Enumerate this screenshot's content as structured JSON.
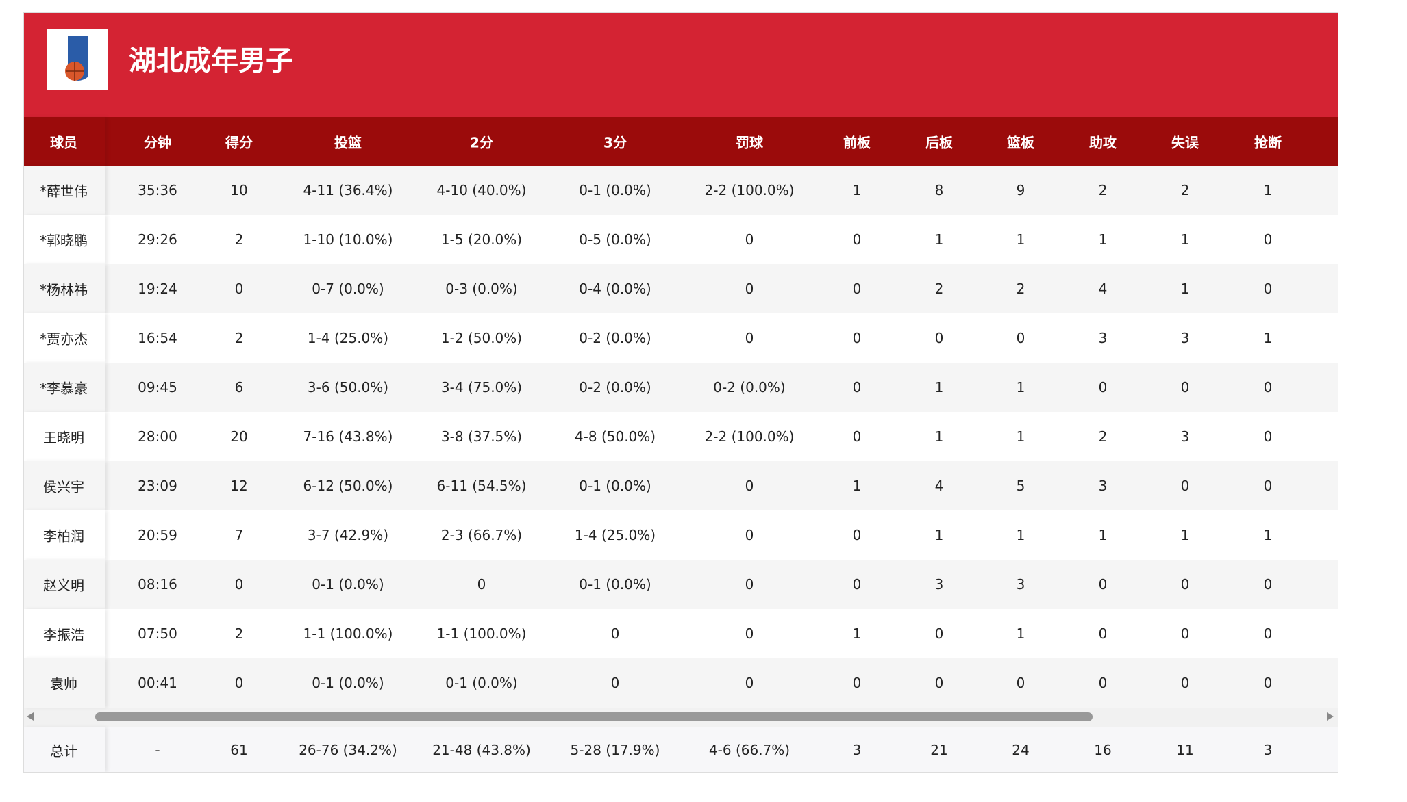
{
  "header": {
    "title": "湖北成年男子"
  },
  "table": {
    "columns": [
      "球员",
      "分钟",
      "得分",
      "投篮",
      "2分",
      "3分",
      "罚球",
      "前板",
      "后板",
      "篮板",
      "助攻",
      "失误",
      "抢断"
    ],
    "rows": [
      [
        "*薛世伟",
        "35:36",
        "10",
        "4-11 (36.4%)",
        "4-10 (40.0%)",
        "0-1 (0.0%)",
        "2-2 (100.0%)",
        "1",
        "8",
        "9",
        "2",
        "2",
        "1"
      ],
      [
        "*郭晓鹏",
        "29:26",
        "2",
        "1-10 (10.0%)",
        "1-5 (20.0%)",
        "0-5 (0.0%)",
        "0",
        "0",
        "1",
        "1",
        "1",
        "1",
        "0"
      ],
      [
        "*杨林祎",
        "19:24",
        "0",
        "0-7 (0.0%)",
        "0-3 (0.0%)",
        "0-4 (0.0%)",
        "0",
        "0",
        "2",
        "2",
        "4",
        "1",
        "0"
      ],
      [
        "*贾亦杰",
        "16:54",
        "2",
        "1-4 (25.0%)",
        "1-2 (50.0%)",
        "0-2 (0.0%)",
        "0",
        "0",
        "0",
        "0",
        "3",
        "3",
        "1"
      ],
      [
        "*李慕豪",
        "09:45",
        "6",
        "3-6 (50.0%)",
        "3-4 (75.0%)",
        "0-2 (0.0%)",
        "0-2 (0.0%)",
        "0",
        "1",
        "1",
        "0",
        "0",
        "0"
      ],
      [
        "王晓明",
        "28:00",
        "20",
        "7-16 (43.8%)",
        "3-8 (37.5%)",
        "4-8 (50.0%)",
        "2-2 (100.0%)",
        "0",
        "1",
        "1",
        "2",
        "3",
        "0"
      ],
      [
        "侯兴宇",
        "23:09",
        "12",
        "6-12 (50.0%)",
        "6-11 (54.5%)",
        "0-1 (0.0%)",
        "0",
        "1",
        "4",
        "5",
        "3",
        "0",
        "0"
      ],
      [
        "李柏润",
        "20:59",
        "7",
        "3-7 (42.9%)",
        "2-3 (66.7%)",
        "1-4 (25.0%)",
        "0",
        "0",
        "1",
        "1",
        "1",
        "1",
        "1"
      ],
      [
        "赵义明",
        "08:16",
        "0",
        "0-1 (0.0%)",
        "0",
        "0-1 (0.0%)",
        "0",
        "0",
        "3",
        "3",
        "0",
        "0",
        "0"
      ],
      [
        "李振浩",
        "07:50",
        "2",
        "1-1 (100.0%)",
        "1-1 (100.0%)",
        "0",
        "0",
        "1",
        "0",
        "1",
        "0",
        "0",
        "0"
      ],
      [
        "袁帅",
        "00:41",
        "0",
        "0-1 (0.0%)",
        "0-1 (0.0%)",
        "0",
        "0",
        "0",
        "0",
        "0",
        "0",
        "0",
        "0"
      ]
    ],
    "total": [
      "总计",
      "-",
      "61",
      "26-76 (34.2%)",
      "21-48 (43.8%)",
      "5-28 (17.9%)",
      "4-6 (66.7%)",
      "3",
      "21",
      "24",
      "16",
      "11",
      "3"
    ]
  }
}
